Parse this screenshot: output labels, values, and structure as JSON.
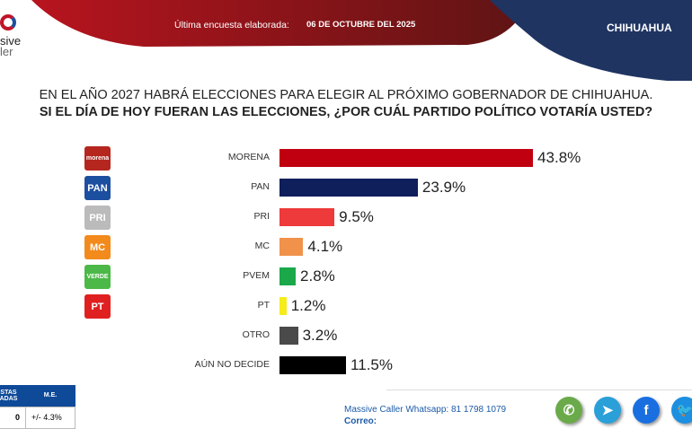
{
  "header": {
    "label": "Última encuesta elaborada:",
    "date": "06 DE OCTUBRE DEL 2025",
    "state": "CHIHUAHUA",
    "logo_text": "Massive Caller"
  },
  "question": {
    "line1": "EN EL AÑO 2027 HABRÁ ELECCIONES PARA ELEGIR AL PRÓXIMO GOBERNADOR DE CHIHUAHUA.",
    "line2": "SI EL DÍA DE HOY FUERAN LAS ELECCIONES, ¿POR CUÁL PARTIDO POLÍTICO VOTARÍA USTED?"
  },
  "chart_data": {
    "type": "bar",
    "orientation": "horizontal",
    "categories": [
      "MORENA",
      "PAN",
      "PRI",
      "MC",
      "PVEM",
      "PT",
      "OTRO",
      "AÚN NO DECIDE"
    ],
    "values": [
      43.8,
      23.9,
      9.5,
      4.1,
      2.8,
      1.2,
      3.2,
      11.5
    ],
    "labels": [
      "43.8%",
      "23.9%",
      "9.5%",
      "4.1%",
      "2.8%",
      "1.2%",
      "3.2%",
      "11.5%"
    ],
    "colors": [
      "#c00010",
      "#0f1f5c",
      "#ee3a3a",
      "#f0924a",
      "#1aa84a",
      "#f5ec1a",
      "#4a4a4a",
      "#000000"
    ]
  },
  "party_logos": [
    {
      "text": "morena",
      "color": "#b5261e"
    },
    {
      "text": "PAN",
      "color": "#1d4fa0"
    },
    {
      "text": "PRI",
      "color": "#bbbbbb"
    },
    {
      "text": "MC",
      "color": "#f28a1c"
    },
    {
      "text": "VERDE",
      "color": "#4cb847"
    },
    {
      "text": "PT",
      "color": "#e02020"
    }
  ],
  "table": {
    "headers": [
      "STAS\nADAS",
      "M.E."
    ],
    "row": [
      "0",
      "+/- 4.3%"
    ]
  },
  "footer": {
    "whatsapp_label": "Massive Caller Whatsapp:",
    "whatsapp": "81 1798 1079",
    "email_label": "Correo:"
  },
  "social": [
    {
      "icon": "whatsapp-icon",
      "glyph": "✆",
      "color": "#6aaa4a"
    },
    {
      "icon": "telegram-icon",
      "glyph": "➤",
      "color": "#2b9fd8"
    },
    {
      "icon": "facebook-icon",
      "glyph": "f",
      "color": "#1a6fe0"
    },
    {
      "icon": "twitter-icon",
      "glyph": "🐦",
      "color": "#1d8fe0"
    }
  ]
}
